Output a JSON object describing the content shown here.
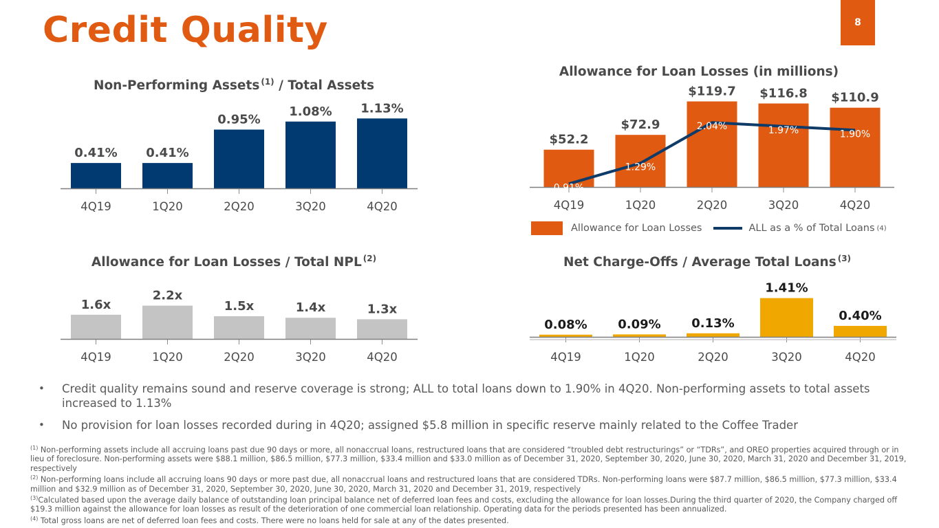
{
  "page": {
    "title": "Credit Quality",
    "page_number": "8"
  },
  "colors": {
    "brand_orange": "#e15a12",
    "navy": "#003a70",
    "line_navy": "#0f3b68",
    "gray_bar": "#c4c4c4",
    "gold": "#f0a800",
    "text_dark": "#404040"
  },
  "chart_data": [
    {
      "id": "npa",
      "type": "bar",
      "title": "Non-Performing Assets",
      "title_footnote": "(1)",
      "title_suffix": "/ Total Assets",
      "categories": [
        "4Q19",
        "1Q20",
        "2Q20",
        "3Q20",
        "4Q20"
      ],
      "values": [
        0.41,
        0.41,
        0.95,
        1.08,
        1.13
      ],
      "labels": [
        "0.41%",
        "0.41%",
        "0.95%",
        "1.08%",
        "1.13%"
      ],
      "unit": "%",
      "ylim": [
        0,
        1.2
      ],
      "grid": false
    },
    {
      "id": "all",
      "type": "bar",
      "title": "Allowance for Loan Losses (in millions)",
      "categories": [
        "4Q19",
        "1Q20",
        "2Q20",
        "3Q20",
        "4Q20"
      ],
      "series": [
        {
          "name": "Allowance for Loan Losses",
          "type": "bar",
          "values": [
            52.2,
            72.9,
            119.7,
            116.8,
            110.9
          ],
          "labels": [
            "$52.2",
            "$72.9",
            "$119.7",
            "$116.8",
            "$110.9"
          ]
        },
        {
          "name": "ALL as a % of Total Loans",
          "name_footnote": "(4)",
          "type": "line",
          "values": [
            0.91,
            1.29,
            2.04,
            1.97,
            1.9
          ],
          "labels": [
            "0.91%",
            "1.29%",
            "2.04%",
            "1.97%",
            "1.90%"
          ]
        }
      ],
      "ylim": [
        0,
        125
      ],
      "y2lim": [
        0.85,
        2.5
      ],
      "legend": "bottom",
      "grid": false
    },
    {
      "id": "npl",
      "type": "bar",
      "title": "Allowance for Loan Losses / Total NPL",
      "title_footnote": "(2)",
      "categories": [
        "4Q19",
        "1Q20",
        "2Q20",
        "3Q20",
        "4Q20"
      ],
      "values": [
        1.6,
        2.2,
        1.5,
        1.4,
        1.3
      ],
      "labels": [
        "1.6x",
        "2.2x",
        "1.5x",
        "1.4x",
        "1.3x"
      ],
      "unit": "x",
      "ylim": [
        0,
        5.0
      ],
      "grid": false
    },
    {
      "id": "nco",
      "type": "bar",
      "title": "Net Charge-Offs / Average Total Loans",
      "title_footnote": "(3)",
      "categories": [
        "4Q19",
        "1Q20",
        "2Q20",
        "3Q20",
        "4Q20"
      ],
      "values": [
        0.08,
        0.09,
        0.13,
        1.41,
        0.4
      ],
      "labels": [
        "0.08%",
        "0.09%",
        "0.13%",
        "1.41%",
        "0.40%"
      ],
      "unit": "%",
      "ylim": [
        0,
        1.45
      ],
      "grid": false
    }
  ],
  "bullets": [
    "Credit quality remains sound and reserve coverage is strong; ALL to total loans down to 1.90% in 4Q20. Non-performing assets to total assets increased to 1.13%",
    "No provision for loan losses recorded during in 4Q20; assigned $5.8 million in specific reserve mainly related to the Coffee Trader"
  ],
  "footnotes": [
    {
      "marker": "(1)",
      "text": "Non-performing assets include all accruing loans past due 90 days or more, all nonaccrual loans, restructured loans that are considered “troubled debt restructurings” or “TDRs”, and OREO properties acquired through or in lieu of foreclosure.  Non-performing assets were $88.1 million, $86.5 million, $77.3 million, $33.4 million  and $33.0 million as of December 31, 2020, September 30, 2020, June 30, 2020, March 31, 2020 and December 31, 2019, respectively"
    },
    {
      "marker": "(2)",
      "text": "Non-performing loans include all accruing loans 90 days or more past due, all nonaccrual loans and restructured loans that are considered TDRs. Non-performing loans were $87.7 million, $86.5 million, $77.3 million, $33.4 million and $32.9 million as of December 31, 2020, September 30, 2020, June 30, 2020, March 31, 2020 and December 31, 2019, respectively"
    },
    {
      "marker": "(3)",
      "text": "Calculated based upon the average daily balance of outstanding loan principal balance net of deferred loan fees and costs, excluding the allowance for loan losses.During the third quarter of 2020, the Company charged off $19.3 million against the allowance for loan losses as result of the deterioration of one commercial loan relationship. Operating data for the periods presented has been annualized."
    },
    {
      "marker": "(4)",
      "text": "Total gross loans are net of deferred loan fees and costs. There were no loans held for sale at any of the dates presented."
    }
  ]
}
